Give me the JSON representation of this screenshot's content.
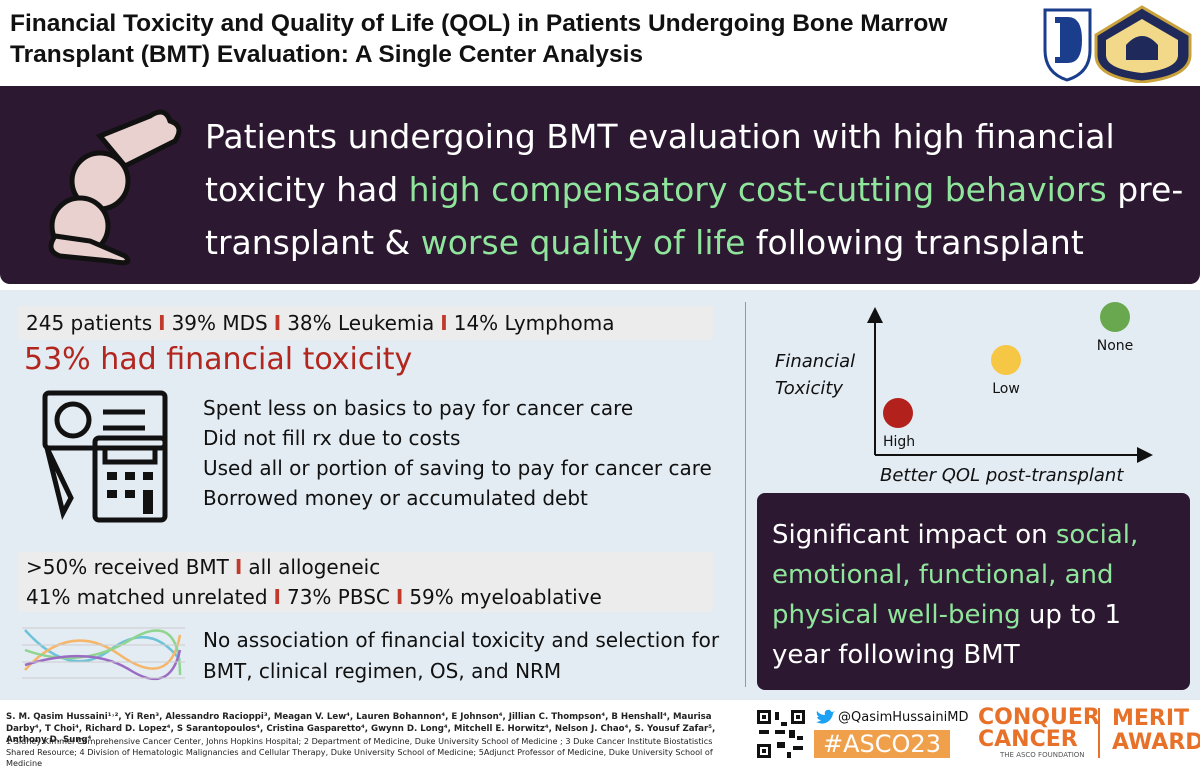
{
  "header": {
    "title": "Financial Toxicity and Quality of Life (QOL) in Patients Undergoing Bone Marrow Transplant (BMT) Evaluation: A Single Center Analysis"
  },
  "headline": [
    {
      "text": "Patients undergoing BMT evaluation with high financial toxicity had ",
      "highlight": false
    },
    {
      "text": "high compensatory cost-cutting behaviors",
      "highlight": true
    },
    {
      "text": " pre-transplant & ",
      "highlight": false
    },
    {
      "text": "worse quality of life",
      "highlight": true
    },
    {
      "text": " following transplant",
      "highlight": false
    }
  ],
  "stats": {
    "separator": "I",
    "items": [
      "245 patients",
      "39% MDS",
      "38% Leukemia",
      "14% Lymphoma"
    ]
  },
  "toxicity": "53% had financial toxicity",
  "behaviors": [
    "Spent less on basics to pay for cancer care",
    "Did not fill rx due to costs",
    "Used all or portion of saving to pay for cancer care",
    "Borrowed money or accumulated debt"
  ],
  "bmt": [
    [
      ">50% received BMT",
      "all allogeneic"
    ],
    [
      "41% matched unrelated",
      "73% PBSC",
      "59% myeloablative"
    ]
  ],
  "no_association": "No association of financial toxicity and selection for BMT, clinical regimen, OS, and NRM",
  "diagram": {
    "y_label": "Financial Toxicity",
    "x_label": "Better QOL post-transplant",
    "points": [
      {
        "label": "High",
        "color": "#b3211c"
      },
      {
        "label": "Low",
        "color": "#f6c744"
      },
      {
        "label": "None",
        "color": "#6aa84f"
      }
    ]
  },
  "impact": [
    {
      "text": "Significant impact on ",
      "highlight": false
    },
    {
      "text": "social, emotional, functional, and physical well-being",
      "highlight": true
    },
    {
      "text": " up to 1 year following BMT",
      "highlight": false
    }
  ],
  "footer": {
    "authors": "S. M. Qasim Hussaini¹˒², Yi Ren³, Alessandro Racioppi³, Meagan V. Lew⁴, Lauren Bohannon⁴, E Johnson⁴, Jillian C. Thompson⁴, B Henshall⁴, Maurisa Darby⁴, T Choi⁴, Richard D. Lopez⁴, S Sarantopoulos⁴, Cristina Gasparetto⁴, Gwynn D. Long⁴, Mitchell E. Horwitz⁴, Nelson J. Chao⁴, S. Yousuf Zafar⁵, Anthony D. Sung⁴",
    "affiliations": "1 Sidney Kimmel Comprehensive Cancer Center, Johns Hopkins Hospital; 2 Department of Medicine, Duke University School of Medicine ; 3 Duke Cancer Institute Biostatistics Shared Resource; 4 Division of Hematologic Malignancies and Cellular Therapy, Duke University School of Medicine; 5Adjunct Professor of Medicine, Duke University School of Medicine",
    "twitter": "@QasimHussainiMD",
    "hashtag": "#ASCO23",
    "conquer": "CONQUER CANCER",
    "foundation": "THE ASCO FOUNDATION",
    "award": "MERIT AWARD"
  }
}
